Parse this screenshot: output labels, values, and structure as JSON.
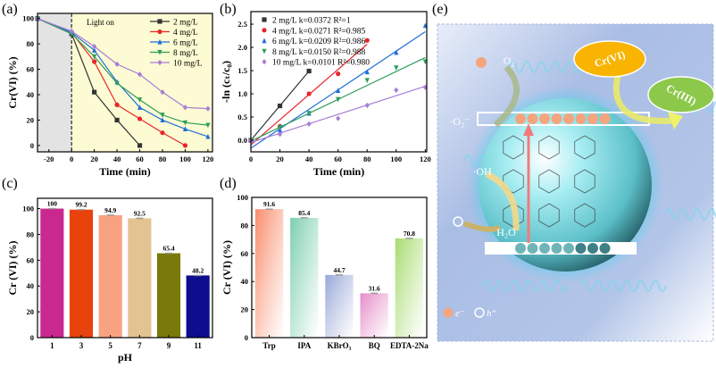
{
  "panel_labels": [
    "(a)",
    "(b)",
    "(c)",
    "(d)",
    "(e)"
  ],
  "chart_data": [
    {
      "type": "line",
      "xlabel": "Time (min)",
      "ylabel": "Cr(VI) (%)",
      "xlim": [
        -30,
        124
      ],
      "ylim": [
        -5,
        104
      ],
      "xticks": [
        -20,
        0,
        20,
        40,
        60,
        80,
        100,
        120
      ],
      "yticks": [
        0,
        20,
        40,
        60,
        80,
        100
      ],
      "annotation": "Light on",
      "dark_region": [
        -30,
        0
      ],
      "legend_position": "top-right",
      "series": [
        {
          "name": "2 mg/L",
          "color": "#333333",
          "marker": "square",
          "x": [
            -30,
            0,
            20,
            40,
            60
          ],
          "y": [
            100,
            88,
            42,
            20,
            0
          ]
        },
        {
          "name": "4 mg/L",
          "color": "#e8262a",
          "marker": "circle",
          "x": [
            -30,
            0,
            20,
            40,
            60,
            80,
            100
          ],
          "y": [
            100,
            89,
            66,
            32,
            21,
            10,
            0
          ]
        },
        {
          "name": "6 mg/L",
          "color": "#1f6fd8",
          "marker": "triangle-up",
          "x": [
            -30,
            0,
            20,
            40,
            60,
            80,
            100,
            120
          ],
          "y": [
            100,
            89,
            75,
            50,
            30,
            20,
            13,
            7
          ]
        },
        {
          "name": "8 mg/L",
          "color": "#2e9d5a",
          "marker": "triangle-down",
          "x": [
            -30,
            0,
            20,
            40,
            60,
            80,
            100,
            120
          ],
          "y": [
            100,
            88,
            70,
            49,
            36,
            24,
            18,
            16
          ]
        },
        {
          "name": "10 mg/L",
          "color": "#a67ed6",
          "marker": "diamond",
          "x": [
            -30,
            0,
            20,
            40,
            60,
            80,
            100,
            120
          ],
          "y": [
            100,
            90,
            78,
            64,
            56,
            42,
            30,
            29
          ]
        }
      ]
    },
    {
      "type": "scatter",
      "xlabel": "Time (min)",
      "ylabel": "-ln (cₜ/c₀)",
      "xlim": [
        0,
        121
      ],
      "ylim": [
        -0.25,
        2.77
      ],
      "xticks": [
        0,
        20,
        40,
        60,
        80,
        100,
        120
      ],
      "yticks": [
        "0.0",
        "0.5",
        "1.0",
        "1.5",
        "2.0",
        "2.5"
      ],
      "legend_position": "top-left",
      "series": [
        {
          "name": "2 mg/L k=0.0372 R²=1",
          "color": "#333333",
          "marker": "square",
          "x": [
            0,
            20,
            40
          ],
          "y": [
            0,
            0.74,
            1.49
          ],
          "fit": {
            "k": 0.0372,
            "b": 0,
            "x": [
              0,
              40
            ]
          }
        },
        {
          "name": "4 mg/L k=0.0271 R²=0.985",
          "color": "#e8262a",
          "marker": "circle",
          "x": [
            0,
            20,
            40,
            60,
            80
          ],
          "y": [
            0,
            0.3,
            1.0,
            1.43,
            2.15
          ],
          "fit": {
            "k": 0.0271,
            "b": -0.1,
            "x": [
              0,
              80
            ]
          }
        },
        {
          "name": "6 mg/L k=0.0209 R²=0.986",
          "color": "#1f6fd8",
          "marker": "triangle-up",
          "x": [
            0,
            20,
            40,
            60,
            80,
            100,
            120
          ],
          "y": [
            0,
            0.22,
            0.58,
            1.07,
            1.47,
            1.89,
            2.47
          ],
          "fit": {
            "k": 0.0209,
            "b": -0.17,
            "x": [
              0,
              120
            ]
          }
        },
        {
          "name": "8 mg/L k=0.0150 R²=0.988",
          "color": "#2e9d5a",
          "marker": "triangle-down",
          "x": [
            0,
            20,
            40,
            60,
            80,
            100,
            120
          ],
          "y": [
            0,
            0.28,
            0.58,
            0.88,
            1.29,
            1.56,
            1.69
          ],
          "fit": {
            "k": 0.015,
            "b": -0.02,
            "x": [
              0,
              120
            ]
          }
        },
        {
          "name": "10 mg/L k=0.0101 R²=0.980",
          "color": "#a67ed6",
          "marker": "diamond",
          "x": [
            0,
            20,
            40,
            60,
            80,
            100,
            120
          ],
          "y": [
            0,
            0.13,
            0.35,
            0.47,
            0.75,
            1.08,
            1.14
          ],
          "fit": {
            "k": 0.0101,
            "b": -0.05,
            "x": [
              0,
              120
            ]
          }
        }
      ]
    },
    {
      "type": "bar",
      "xlabel": "pH",
      "ylabel": "Cr (VI) (%)",
      "ylim": [
        0,
        108
      ],
      "yticks": [
        0,
        20,
        40,
        60,
        80,
        100
      ],
      "categories": [
        "1",
        "3",
        "5",
        "7",
        "9",
        "11"
      ],
      "values": [
        100,
        99.2,
        94.9,
        92.5,
        65.4,
        48.2
      ],
      "labels": [
        "100",
        "99.2",
        "94.9",
        "92.5",
        "65.4",
        "48.2"
      ],
      "colors": [
        "#c8288f",
        "#e8420d",
        "#f8a282",
        "#e2c391",
        "#7a7a0a",
        "#0d0d8e"
      ]
    },
    {
      "type": "bar",
      "xlabel": "",
      "ylabel": "Cr (VI) (%)",
      "ylim": [
        0,
        100
      ],
      "yticks": [
        0,
        20,
        40,
        60,
        80,
        100
      ],
      "categories": [
        "Trp",
        "IPA",
        "KBrO₃",
        "BQ",
        "EDTA-2Na"
      ],
      "values": [
        91.6,
        85.4,
        44.7,
        31.6,
        70.8
      ],
      "labels": [
        "91.6",
        "85.4",
        "44.7",
        "31.6",
        "70.8"
      ],
      "colors": [
        "#f98d6c",
        "#7dcfae",
        "#9aa8d8",
        "#e58cc8",
        "#a8dc70"
      ]
    }
  ],
  "schematic": {
    "o2": "O₂",
    "superoxide": "·O₂⁻",
    "hydroxyl": "·OH",
    "water": "H₂O",
    "cr6": "Cr(VI)",
    "cr3": "Cr(III)",
    "electron": "e⁻",
    "hole": "h⁺",
    "colors": {
      "electron": "#f4a57e",
      "cr6": "#f8b400",
      "cr3": "#8cc84a",
      "sphere": "#7fe0ea",
      "excitation": "#f27a7a"
    }
  }
}
